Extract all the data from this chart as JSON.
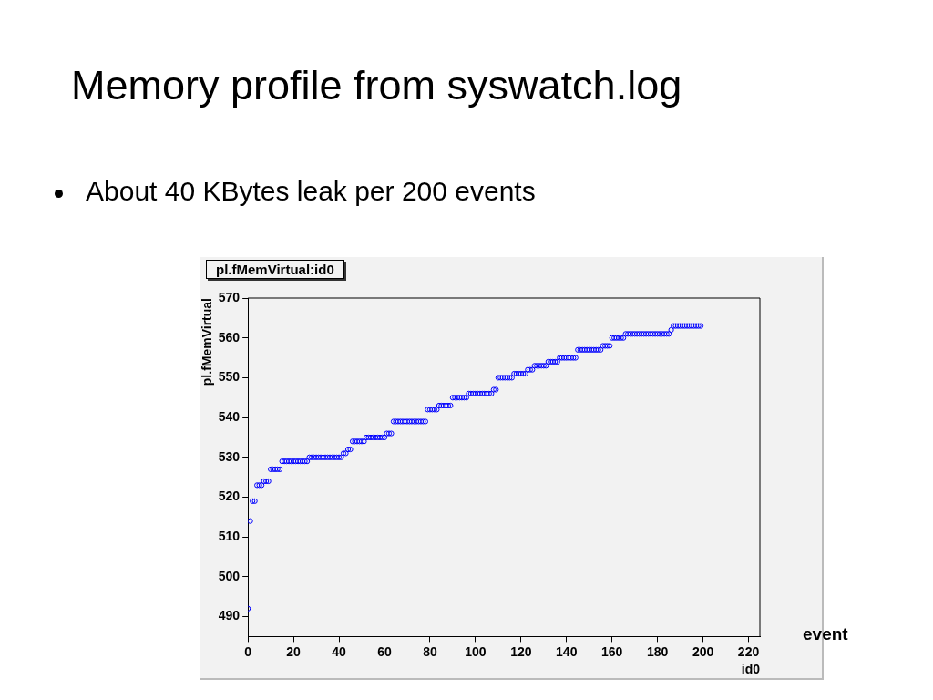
{
  "chart_data": {
    "type": "scatter",
    "title": "Memory profile from syswatch.log",
    "subtitle": "About 40 KBytes leak per 200 events",
    "xlabel": "id0",
    "ylabel": "pl.fMemVirtual",
    "annotations": [
      "pl.fMemVirtual:id0",
      "event"
    ],
    "x": [
      0,
      1,
      2,
      3,
      4,
      5,
      6,
      7,
      8,
      9,
      10,
      11,
      12,
      13,
      14,
      15,
      16,
      17,
      18,
      19,
      20,
      21,
      22,
      23,
      24,
      25,
      26,
      27,
      28,
      29,
      30,
      31,
      32,
      33,
      34,
      35,
      36,
      37,
      38,
      39,
      40,
      41,
      42,
      43,
      44,
      45,
      46,
      47,
      48,
      49,
      50,
      51,
      52,
      53,
      54,
      55,
      56,
      57,
      58,
      59,
      60,
      61,
      62,
      63,
      64,
      65,
      66,
      67,
      68,
      69,
      70,
      71,
      72,
      73,
      74,
      75,
      76,
      77,
      78,
      79,
      80,
      81,
      82,
      83,
      84,
      85,
      86,
      87,
      88,
      89,
      90,
      91,
      92,
      93,
      94,
      95,
      96,
      97,
      98,
      99,
      100,
      101,
      102,
      103,
      104,
      105,
      106,
      107,
      108,
      109,
      110,
      111,
      112,
      113,
      114,
      115,
      116,
      117,
      118,
      119,
      120,
      121,
      122,
      123,
      124,
      125,
      126,
      127,
      128,
      129,
      130,
      131,
      132,
      133,
      134,
      135,
      136,
      137,
      138,
      139,
      140,
      141,
      142,
      143,
      144,
      145,
      146,
      147,
      148,
      149,
      150,
      151,
      152,
      153,
      154,
      155,
      156,
      157,
      158,
      159,
      160,
      161,
      162,
      163,
      164,
      165,
      166,
      167,
      168,
      169,
      170,
      171,
      172,
      173,
      174,
      175,
      176,
      177,
      178,
      179,
      180,
      181,
      182,
      183,
      184,
      185,
      186,
      187,
      188,
      189,
      190,
      191,
      192,
      193,
      194,
      195,
      196,
      197,
      198,
      199
    ],
    "series": [
      {
        "color": "#0000ff",
        "values": [
          492,
          514,
          519,
          519,
          523,
          523,
          523,
          524,
          524,
          524,
          527,
          527,
          527,
          527,
          527,
          529,
          529,
          529,
          529,
          529,
          529,
          529,
          529,
          529,
          529,
          529,
          529,
          530,
          530,
          530,
          530,
          530,
          530,
          530,
          530,
          530,
          530,
          530,
          530,
          530,
          530,
          530,
          531,
          531,
          532,
          532,
          534,
          534,
          534,
          534,
          534,
          534,
          535,
          535,
          535,
          535,
          535,
          535,
          535,
          535,
          535,
          536,
          536,
          536,
          539,
          539,
          539,
          539,
          539,
          539,
          539,
          539,
          539,
          539,
          539,
          539,
          539,
          539,
          539,
          542,
          542,
          542,
          542,
          542,
          543,
          543,
          543,
          543,
          543,
          543,
          545,
          545,
          545,
          545,
          545,
          545,
          545,
          546,
          546,
          546,
          546,
          546,
          546,
          546,
          546,
          546,
          546,
          546,
          547,
          547,
          550,
          550,
          550,
          550,
          550,
          550,
          550,
          551,
          551,
          551,
          551,
          551,
          551,
          552,
          552,
          552,
          553,
          553,
          553,
          553,
          553,
          553,
          554,
          554,
          554,
          554,
          554,
          555,
          555,
          555,
          555,
          555,
          555,
          555,
          555,
          557,
          557,
          557,
          557,
          557,
          557,
          557,
          557,
          557,
          557,
          557,
          558,
          558,
          558,
          558,
          560,
          560,
          560,
          560,
          560,
          560,
          561,
          561,
          561,
          561,
          561,
          561,
          561,
          561,
          561,
          561,
          561,
          561,
          561,
          561,
          561,
          561,
          561,
          561,
          561,
          561,
          562,
          563,
          563,
          563,
          563,
          563,
          563,
          563,
          563,
          563,
          563,
          563,
          563,
          563
        ]
      }
    ],
    "marker": "circle",
    "grid": false,
    "legend": false,
    "xlim": [
      0,
      225
    ],
    "ylim": [
      485,
      570
    ],
    "xticks": [
      0,
      20,
      40,
      60,
      80,
      100,
      120,
      140,
      160,
      180,
      200,
      220
    ],
    "yticks": [
      490,
      500,
      510,
      520,
      530,
      540,
      550,
      560,
      570
    ]
  }
}
